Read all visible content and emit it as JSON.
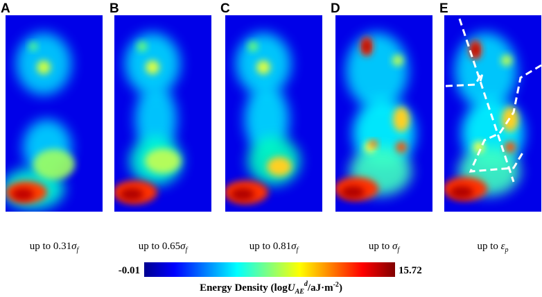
{
  "panels": [
    {
      "letter": "A",
      "caption": {
        "text": "up to 0.31",
        "symbol": "σ",
        "sub": "f"
      }
    },
    {
      "letter": "B",
      "caption": {
        "text": "up to 0.65",
        "symbol": "σ",
        "sub": "f"
      }
    },
    {
      "letter": "C",
      "caption": {
        "text": "up to 0.81",
        "symbol": "σ",
        "sub": "f"
      }
    },
    {
      "letter": "D",
      "caption": {
        "text": "up to ",
        "symbol": "σ",
        "sub": "f"
      }
    },
    {
      "letter": "E",
      "caption": {
        "text": "up to ",
        "symbol": "ε",
        "sub": "p"
      }
    }
  ],
  "colorbar": {
    "min": -0.01,
    "max": 15.72,
    "label": {
      "before": "Energy Density (log",
      "var": "U",
      "sub": "AE",
      "sup": "d",
      "after": "/aJ·m",
      "exp": "-2",
      "close": ")"
    }
  }
}
